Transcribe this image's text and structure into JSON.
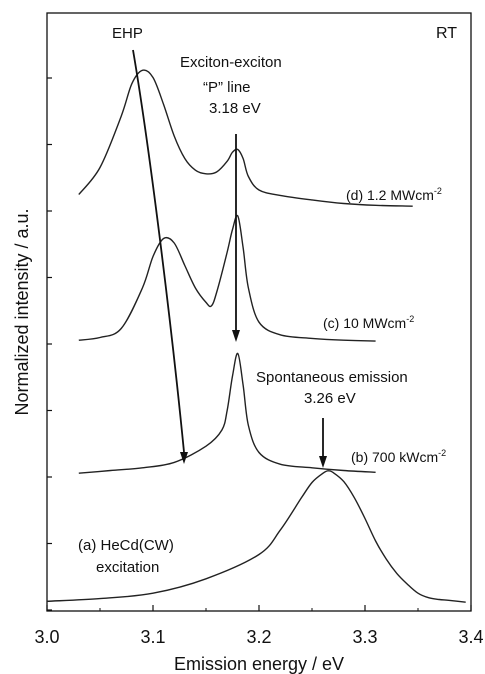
{
  "chart_data": {
    "type": "line",
    "xlabel": "Emission energy / eV",
    "ylabel": "Normalized intensity / a.u.",
    "xlim": [
      3.0,
      3.4
    ],
    "x_ticks": [
      "3.0",
      "3.1",
      "3.2",
      "3.3",
      "3.4"
    ],
    "grid": false,
    "legend": "none",
    "corner_label": "RT",
    "series": [
      {
        "name": "(d) 1.2 MWcm⁻²",
        "x": [
          3.03,
          3.05,
          3.07,
          3.08,
          3.09,
          3.1,
          3.11,
          3.12,
          3.13,
          3.14,
          3.15,
          3.16,
          3.17,
          3.175,
          3.18,
          3.185,
          3.19,
          3.2,
          3.22,
          3.25,
          3.28,
          3.31,
          3.345
        ],
        "y": [
          0.15,
          0.45,
          1.02,
          1.38,
          1.53,
          1.45,
          1.15,
          0.8,
          0.55,
          0.42,
          0.38,
          0.4,
          0.52,
          0.62,
          0.65,
          0.55,
          0.35,
          0.2,
          0.14,
          0.09,
          0.05,
          0.03,
          0.02
        ]
      },
      {
        "name": "(c) 10 MWcm⁻²",
        "x": [
          3.03,
          3.05,
          3.07,
          3.09,
          3.1,
          3.11,
          3.12,
          3.13,
          3.14,
          3.15,
          3.155,
          3.16,
          3.17,
          3.175,
          3.18,
          3.185,
          3.19,
          3.2,
          3.22,
          3.25,
          3.28,
          3.31
        ],
        "y": [
          0.02,
          0.05,
          0.15,
          0.6,
          0.95,
          1.15,
          1.1,
          0.85,
          0.6,
          0.44,
          0.4,
          0.55,
          1.0,
          1.25,
          1.4,
          1.05,
          0.6,
          0.22,
          0.08,
          0.04,
          0.02,
          0.01
        ]
      },
      {
        "name": "(b) 700 kWcm⁻²",
        "x": [
          3.03,
          3.06,
          3.09,
          3.12,
          3.15,
          3.165,
          3.17,
          3.175,
          3.18,
          3.185,
          3.19,
          3.2,
          3.22,
          3.25,
          3.28,
          3.31
        ],
        "y": [
          0.02,
          0.05,
          0.08,
          0.14,
          0.32,
          0.5,
          0.72,
          1.1,
          1.35,
          1.0,
          0.55,
          0.25,
          0.12,
          0.08,
          0.05,
          0.03
        ]
      },
      {
        "name": "(a) HeCd(CW) excitation",
        "x": [
          3.0,
          3.05,
          3.1,
          3.15,
          3.2,
          3.22,
          3.24,
          3.25,
          3.26,
          3.265,
          3.27,
          3.28,
          3.29,
          3.3,
          3.31,
          3.32,
          3.33,
          3.34,
          3.35,
          3.36,
          3.37,
          3.38,
          3.395
        ],
        "y": [
          0.03,
          0.06,
          0.12,
          0.28,
          0.55,
          0.82,
          1.18,
          1.35,
          1.45,
          1.48,
          1.46,
          1.36,
          1.18,
          0.95,
          0.7,
          0.5,
          0.34,
          0.22,
          0.12,
          0.07,
          0.05,
          0.04,
          0.02
        ]
      }
    ],
    "annotations": {
      "ehp": "EHP",
      "exciton_line1": "Exciton-exciton",
      "exciton_line2": "“P” line",
      "exciton_energy": "3.18 eV",
      "spontaneous": "Spontaneous emission",
      "spontaneous_energy": "3.26 eV",
      "hecd_line1": "(a) HeCd(CW)",
      "hecd_line2": "excitation"
    },
    "curve_labels": {
      "d_prefix": "(d) 1.2 MWcm",
      "d_sup": "-2",
      "c_prefix": "(c) 10 MWcm",
      "c_sup": "-2",
      "b_prefix": "(b) 700 kWcm",
      "b_sup": "-2"
    }
  }
}
